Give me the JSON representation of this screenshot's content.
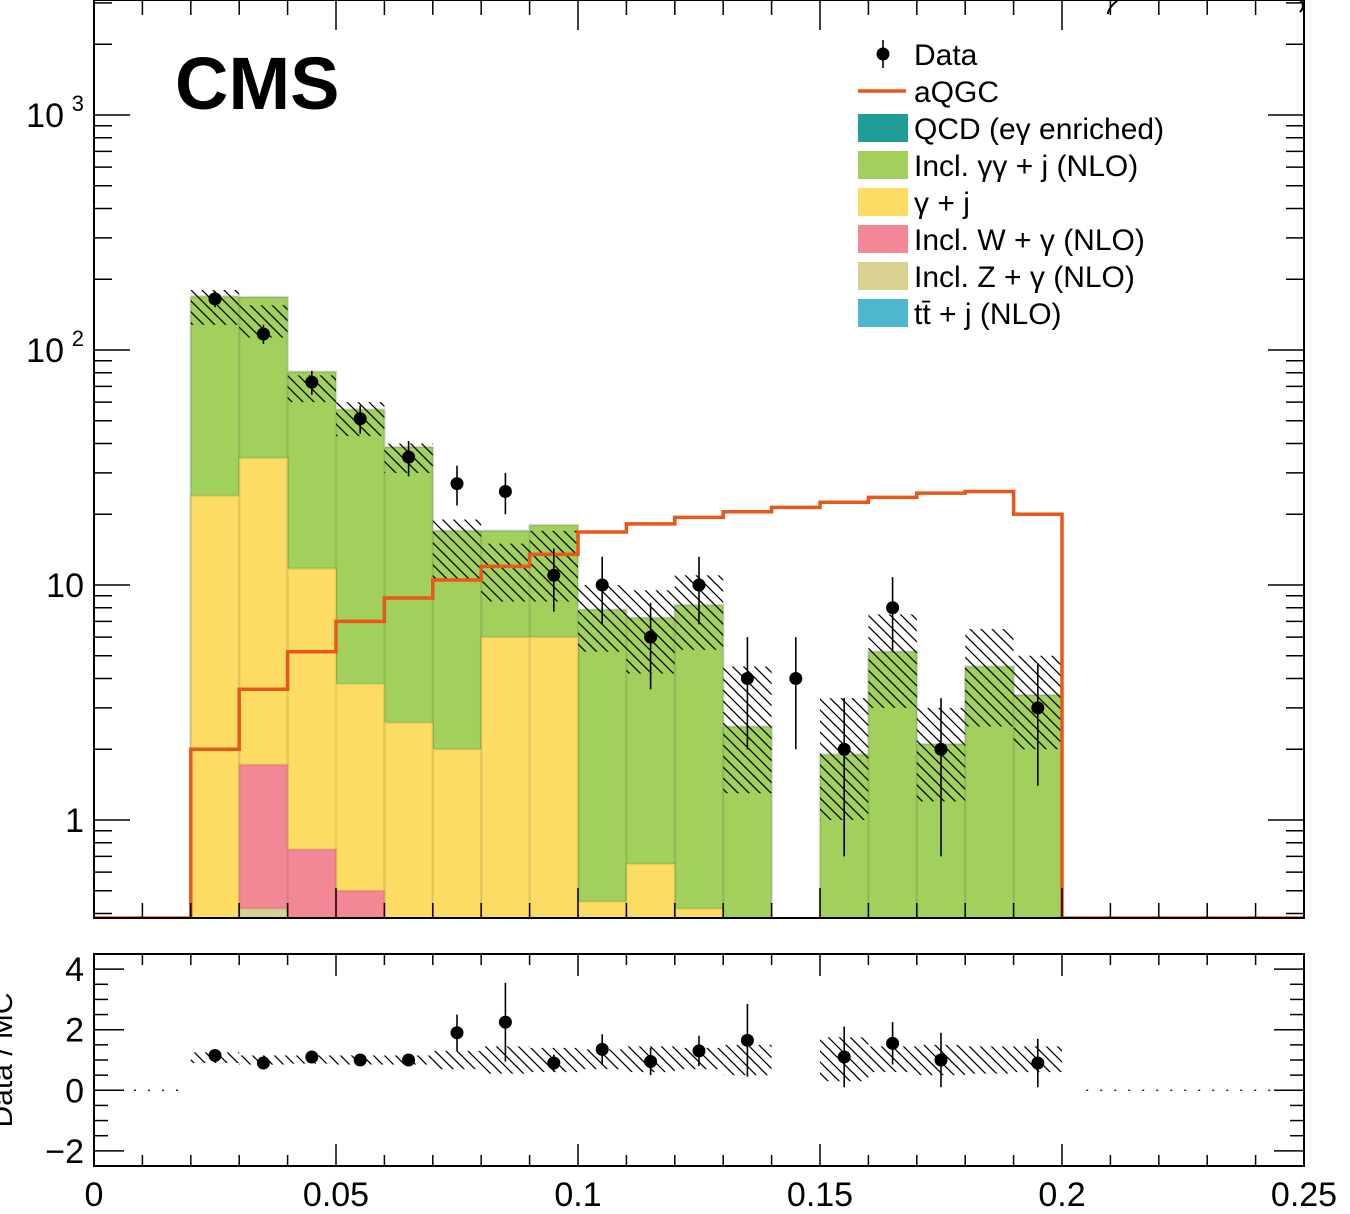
{
  "chart_data": [
    {
      "type": "bar",
      "subtype": "stacked-histogram-log",
      "title": "CMS",
      "xlabel": "",
      "ylabel": "",
      "xlim": [
        0,
        0.25
      ],
      "ylim": [
        0.4,
        2500
      ],
      "yscale": "log",
      "bin_edges": [
        0.02,
        0.03,
        0.04,
        0.05,
        0.06,
        0.07,
        0.08,
        0.09,
        0.1,
        0.11,
        0.12,
        0.13,
        0.14,
        0.15,
        0.16,
        0.17,
        0.18,
        0.19,
        0.2
      ],
      "x_ticks": [
        {
          "v": 0,
          "label": "0"
        },
        {
          "v": 0.05,
          "label": "0.05"
        },
        {
          "v": 0.1,
          "label": "0.1"
        },
        {
          "v": 0.15,
          "label": "0.15"
        },
        {
          "v": 0.2,
          "label": "0.2"
        },
        {
          "v": 0.25,
          "label": "0.25"
        }
      ],
      "y_ticks": [
        {
          "v": 1,
          "label": "1"
        },
        {
          "v": 10,
          "label": "10"
        },
        {
          "v": 100,
          "label": "10",
          "sup": "2"
        },
        {
          "v": 1000,
          "label": "10",
          "sup": "3"
        }
      ],
      "legend_position": "top-right",
      "series": [
        {
          "name": "QCD (eγ enriched)",
          "kind": "stack",
          "color": "#1f9e9a",
          "values": [
            0,
            0,
            0,
            0,
            0,
            0,
            0,
            0,
            0,
            0,
            0,
            0,
            0,
            0,
            0,
            0,
            0,
            0
          ]
        },
        {
          "name": "Incl. γγ + j (NLO)",
          "kind": "stack",
          "color": "#a2d05d",
          "values": [
            145,
            133,
            69,
            52,
            36,
            15,
            11,
            12,
            7.4,
            6.6,
            7.8,
            2.5,
            0,
            1.9,
            5.2,
            2.1,
            4.5,
            3.4
          ]
        },
        {
          "name": "γ + j",
          "kind": "stack",
          "color": "#fddc63",
          "values": [
            24,
            33,
            11,
            3.3,
            2.6,
            2.0,
            6,
            6,
            0.45,
            0.65,
            0.42,
            0,
            0,
            0,
            0,
            0,
            0,
            0
          ]
        },
        {
          "name": "Incl. W + γ (NLO)",
          "kind": "stack",
          "color": "#f48795",
          "values": [
            0,
            1.3,
            0.75,
            0.5,
            0,
            0,
            0,
            0,
            0,
            0,
            0,
            0,
            0,
            0,
            0,
            0,
            0,
            0
          ]
        },
        {
          "name": "Incl. Z + γ (NLO)",
          "kind": "stack",
          "color": "#d9d190",
          "values": [
            0,
            0.42,
            0,
            0,
            0,
            0,
            0,
            0,
            0,
            0,
            0,
            0,
            0,
            0,
            0,
            0,
            0,
            0
          ]
        },
        {
          "name": "tt̄ + j (NLO)",
          "kind": "stack",
          "color": "#4db8cb",
          "values": [
            0,
            0,
            0,
            0,
            0,
            0,
            0,
            0,
            0,
            0,
            0,
            0,
            0,
            0,
            0,
            0,
            0,
            0
          ]
        },
        {
          "name": "aQGC",
          "kind": "line",
          "color": "#e9571a",
          "values": [
            2.0,
            3.6,
            5.2,
            7.0,
            8.8,
            10.5,
            12.0,
            13.5,
            16.8,
            18.2,
            19.4,
            20.5,
            21.4,
            22.5,
            23.6,
            24.6,
            25.0,
            20.0
          ]
        },
        {
          "name": "Data",
          "kind": "points",
          "color": "#000000",
          "x": [
            0.025,
            0.035,
            0.045,
            0.055,
            0.065,
            0.075,
            0.085,
            0.095,
            0.105,
            0.115,
            0.125,
            0.135,
            0.145,
            0.155,
            0.165,
            0.175,
            0.195
          ],
          "y": [
            165,
            117,
            73,
            51,
            35,
            27,
            25,
            11,
            10,
            6,
            10,
            4,
            4,
            2,
            8,
            2,
            3
          ],
          "err_low": [
            13,
            11,
            8.5,
            7,
            6,
            5.2,
            5,
            3.3,
            3.2,
            2.4,
            3.2,
            2,
            2,
            1.3,
            2.8,
            1.3,
            1.6
          ],
          "err_high": [
            13,
            11,
            8.5,
            7,
            6,
            5.2,
            5,
            3.3,
            3.2,
            2.4,
            3.2,
            2,
            2,
            1.3,
            2.8,
            1.3,
            1.6
          ]
        }
      ],
      "uncertainty": {
        "lower": [
          128,
          113,
          60,
          43,
          30,
          10.5,
          8.5,
          8.5,
          5.2,
          4.2,
          5.3,
          1.3,
          0,
          1.0,
          3.0,
          1.2,
          2.5,
          2.0
        ],
        "upper": [
          180,
          155,
          78,
          60,
          40,
          19,
          15,
          17,
          10,
          9.5,
          11,
          4.5,
          0,
          3.3,
          7.5,
          3.0,
          6.5,
          5.0
        ]
      }
    },
    {
      "type": "scatter",
      "subtype": "ratio-panel",
      "xlabel": "",
      "ylabel": "Data / MC",
      "xlim": [
        0,
        0.25
      ],
      "ylim": [
        -2.5,
        4.5
      ],
      "y_ticks": [
        {
          "v": -2,
          "label": "−2"
        },
        {
          "v": 0,
          "label": "0"
        },
        {
          "v": 2,
          "label": "2"
        },
        {
          "v": 4,
          "label": "4"
        }
      ],
      "points": {
        "x": [
          0.025,
          0.035,
          0.045,
          0.055,
          0.065,
          0.075,
          0.085,
          0.095,
          0.105,
          0.115,
          0.125,
          0.135,
          0.155,
          0.165,
          0.175,
          0.195
        ],
        "y": [
          1.15,
          0.9,
          1.1,
          1.0,
          1.0,
          1.9,
          2.25,
          0.9,
          1.35,
          0.95,
          1.3,
          1.65,
          1.1,
          1.55,
          1.0,
          0.9
        ],
        "err": [
          0.1,
          0.1,
          0.12,
          0.13,
          0.17,
          0.6,
          1.3,
          0.28,
          0.5,
          0.45,
          0.5,
          1.2,
          1.0,
          0.7,
          0.9,
          0.8
        ]
      },
      "uncertainty_bins": {
        "edges": [
          0.02,
          0.03,
          0.04,
          0.05,
          0.06,
          0.07,
          0.08,
          0.09,
          0.1,
          0.11,
          0.12,
          0.13,
          0.14,
          0.15,
          0.16,
          0.17,
          0.18,
          0.19,
          0.2
        ],
        "lower": [
          0.9,
          0.85,
          0.88,
          0.85,
          0.85,
          0.7,
          0.55,
          0.6,
          0.7,
          0.6,
          0.7,
          0.5,
          null,
          0.3,
          0.6,
          0.5,
          0.55,
          0.6
        ],
        "upper": [
          1.25,
          1.15,
          1.15,
          1.15,
          1.15,
          1.3,
          1.45,
          1.4,
          1.35,
          1.45,
          1.4,
          1.5,
          null,
          1.75,
          1.45,
          1.5,
          1.45,
          1.45
        ]
      }
    }
  ]
}
